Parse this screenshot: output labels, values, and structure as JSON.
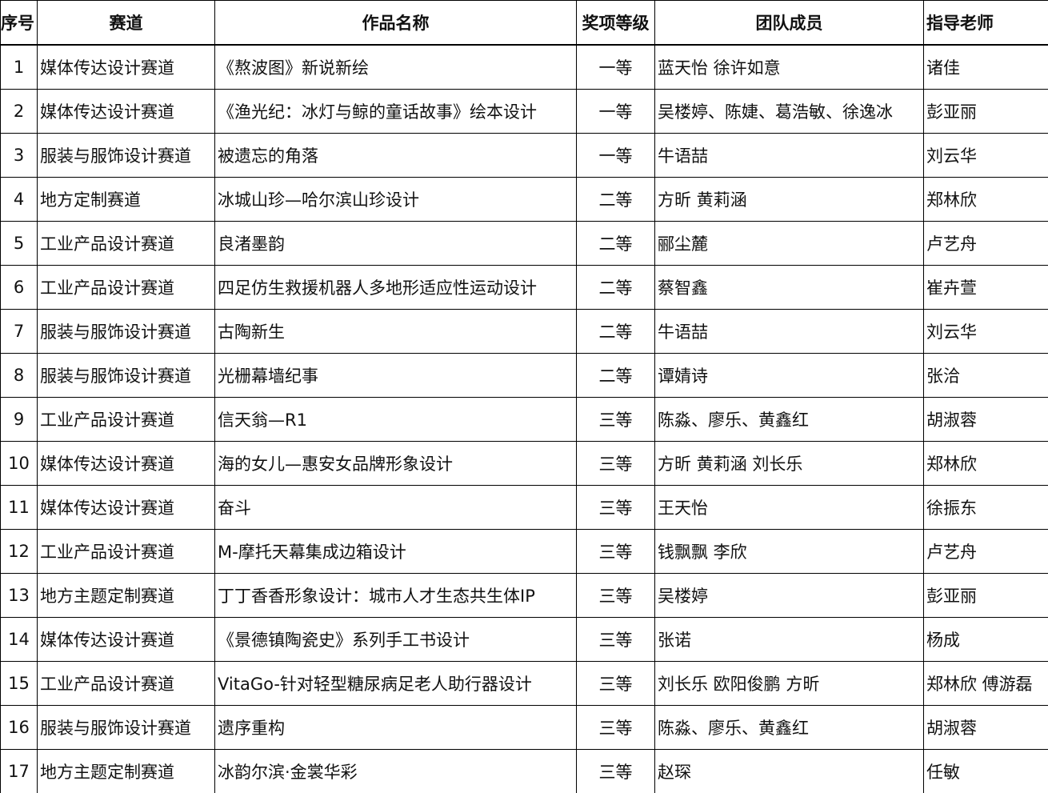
{
  "table": {
    "header": [
      "序号",
      "赛道",
      "作品名称",
      "奖项等级",
      "团队成员",
      "指导老师"
    ],
    "rows": [
      [
        1,
        "媒体传达设计赛道",
        "《熬波图》新说新绘",
        "一等",
        "蓝天怡 徐许如意",
        "诸佳"
      ],
      [
        2,
        "媒体传达设计赛道",
        "《渔光纪：冰灯与鲸的童话故事》绘本设计",
        "一等",
        "吴楼婷、陈婕、葛浩敏、徐逸冰",
        "彭亚丽"
      ],
      [
        3,
        "服装与服饰设计赛道",
        "被遗忘的角落",
        "一等",
        "牛语喆",
        "刘云华"
      ],
      [
        4,
        "地方定制赛道",
        "冰城山珍—哈尔滨山珍设计",
        "二等",
        "方昕 黄莉涵",
        "郑林欣"
      ],
      [
        5,
        "工业产品设计赛道",
        "良渚墨韵",
        "二等",
        "郦尘麓",
        "卢艺舟"
      ],
      [
        6,
        "工业产品设计赛道",
        "四足仿生救援机器人多地形适应性运动设计",
        "二等",
        "蔡智鑫",
        "崔卉萱"
      ],
      [
        7,
        "服装与服饰设计赛道",
        "古陶新生",
        "二等",
        "牛语喆",
        "刘云华"
      ],
      [
        8,
        "服装与服饰设计赛道",
        "光栅幕墙纪事",
        "二等",
        "谭婧诗",
        "张洽"
      ],
      [
        9,
        "工业产品设计赛道",
        "信天翁—R1",
        "三等",
        "陈淼、廖乐、黄鑫红",
        "胡淑蓉"
      ],
      [
        10,
        "媒体传达设计赛道",
        "海的女儿—惠安女品牌形象设计",
        "三等",
        "方昕 黄莉涵 刘长乐",
        "郑林欣"
      ],
      [
        11,
        "媒体传达设计赛道",
        "奋斗",
        "三等",
        "王天怡",
        "徐振东"
      ],
      [
        12,
        "工业产品设计赛道",
        "M-摩托天幕集成边箱设计",
        "三等",
        "钱飘飘 李欣",
        "卢艺舟"
      ],
      [
        13,
        "地方主题定制赛道",
        "丁丁香香形象设计：城市人才生态共生体IP",
        "三等",
        "吴楼婷",
        "彭亚丽"
      ],
      [
        14,
        "媒体传达设计赛道",
        "《景德镇陶瓷史》系列手工书设计",
        "三等",
        "张诺",
        "杨成"
      ],
      [
        15,
        "工业产品设计赛道",
        "VitaGo-针对轻型糖尿病足老人助行器设计",
        "三等",
        "刘长乐 欧阳俊鹏 方昕",
        "郑林欣 傅游磊"
      ],
      [
        16,
        "服装与服饰设计赛道",
        "遗序重构",
        "三等",
        "陈淼、廖乐、黄鑫红",
        "胡淑蓉"
      ],
      [
        17,
        "地方主题定制赛道",
        "冰韵尔滨·金裳华彩",
        "三等",
        "赵琛",
        "任敏"
      ]
    ]
  }
}
